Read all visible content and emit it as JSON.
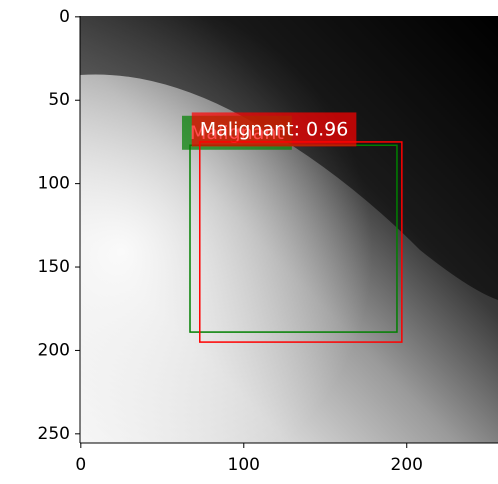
{
  "chart_data": {
    "type": "image",
    "xlim": [
      -0.5,
      256
    ],
    "ylim": [
      255.5,
      -0.5
    ],
    "xticks": [
      0,
      100,
      200
    ],
    "yticks": [
      0,
      50,
      100,
      150,
      200,
      250
    ],
    "boxes": [
      {
        "label": "Malignant",
        "color": "#008000",
        "x0": 67,
        "y0": 77,
        "x1": 194,
        "y1": 189
      },
      {
        "label": "Malignant: 0.96",
        "color": "#ff0000",
        "x0": 73,
        "y0": 75,
        "x1": 197,
        "y1": 195
      }
    ]
  }
}
